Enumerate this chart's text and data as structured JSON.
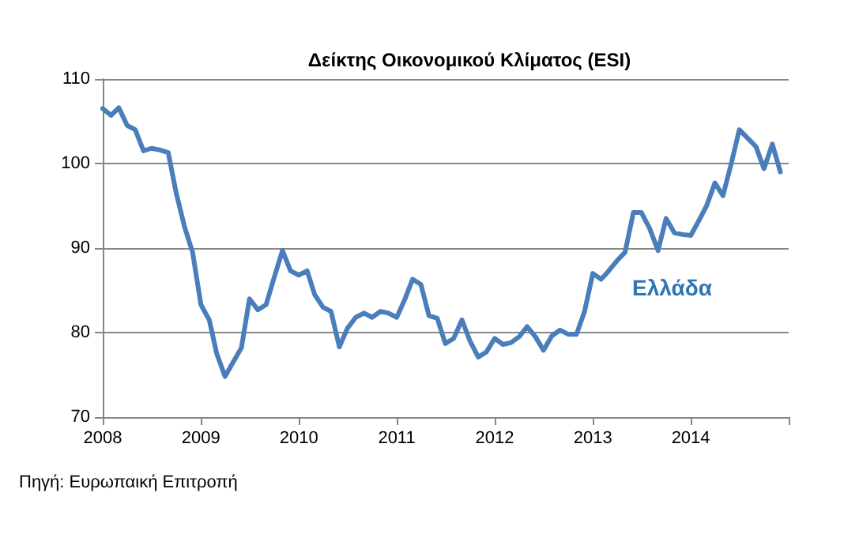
{
  "chart_data": {
    "type": "line",
    "title": "Δείκτης Οικονομικού Κλίματος (ESI)",
    "x": [
      "2008-01",
      "2008-02",
      "2008-03",
      "2008-04",
      "2008-05",
      "2008-06",
      "2008-07",
      "2008-08",
      "2008-09",
      "2008-10",
      "2008-11",
      "2008-12",
      "2009-01",
      "2009-02",
      "2009-03",
      "2009-04",
      "2009-05",
      "2009-06",
      "2009-07",
      "2009-08",
      "2009-09",
      "2009-10",
      "2009-11",
      "2009-12",
      "2010-01",
      "2010-02",
      "2010-03",
      "2010-04",
      "2010-05",
      "2010-06",
      "2010-07",
      "2010-08",
      "2010-09",
      "2010-10",
      "2010-11",
      "2010-12",
      "2011-01",
      "2011-02",
      "2011-03",
      "2011-04",
      "2011-05",
      "2011-06",
      "2011-07",
      "2011-08",
      "2011-09",
      "2011-10",
      "2011-11",
      "2011-12",
      "2012-01",
      "2012-02",
      "2012-03",
      "2012-04",
      "2012-05",
      "2012-06",
      "2012-07",
      "2012-08",
      "2012-09",
      "2012-10",
      "2012-11",
      "2012-12",
      "2013-01",
      "2013-02",
      "2013-03",
      "2013-04",
      "2013-05",
      "2013-06",
      "2013-07",
      "2013-08",
      "2013-09",
      "2013-10",
      "2013-11",
      "2013-12",
      "2014-01",
      "2014-02",
      "2014-03",
      "2014-04",
      "2014-05",
      "2014-06",
      "2014-07",
      "2014-08",
      "2014-09",
      "2014-10",
      "2014-11",
      "2014-12"
    ],
    "series": [
      {
        "name": "Ελλάδα",
        "color": "#4a7ebb",
        "values": [
          106.5,
          105.7,
          106.6,
          104.5,
          104,
          101.5,
          101.8,
          101.6,
          101.3,
          96.5,
          92.5,
          89.5,
          83.3,
          81.5,
          77.5,
          74.8,
          76.5,
          78.2,
          84,
          82.7,
          83.3,
          86.5,
          89.7,
          87.3,
          86.8,
          87.3,
          84.5,
          83,
          82.5,
          78.3,
          80.5,
          81.8,
          82.3,
          81.8,
          82.5,
          82.3,
          81.8,
          84,
          86.3,
          85.7,
          82,
          81.7,
          78.7,
          79.3,
          81.5,
          79,
          77.1,
          77.7,
          79.3,
          78.6,
          78.8,
          79.5,
          80.7,
          79.5,
          77.9,
          79.6,
          80.3,
          79.8,
          79.8,
          82.5,
          87,
          86.3,
          87.3,
          88.5,
          89.5,
          94.2,
          94.2,
          92.3,
          89.7,
          93.5,
          91.8,
          91.6,
          91.5,
          93.3,
          95,
          97.7,
          96.2,
          100,
          104,
          103,
          102,
          99.4,
          102.3,
          99
        ]
      }
    ],
    "xlim": [
      "2008-01",
      "2015-01"
    ],
    "xticks": [
      {
        "value": "2008-01",
        "label": "2008"
      },
      {
        "value": "2009-01",
        "label": "2009"
      },
      {
        "value": "2010-01",
        "label": "2010"
      },
      {
        "value": "2011-01",
        "label": "2011"
      },
      {
        "value": "2012-01",
        "label": "2012"
      },
      {
        "value": "2013-01",
        "label": "2013"
      },
      {
        "value": "2014-01",
        "label": "2014"
      },
      {
        "value": "2015-01",
        "label": null
      }
    ],
    "ylim": [
      70,
      110
    ],
    "yticks": [
      70,
      80,
      90,
      100,
      110
    ],
    "grid": "y",
    "marker": "none",
    "line_style": "solid",
    "annotations": [
      "Πηγή: Ευρωπαική Επιτροπή"
    ]
  }
}
